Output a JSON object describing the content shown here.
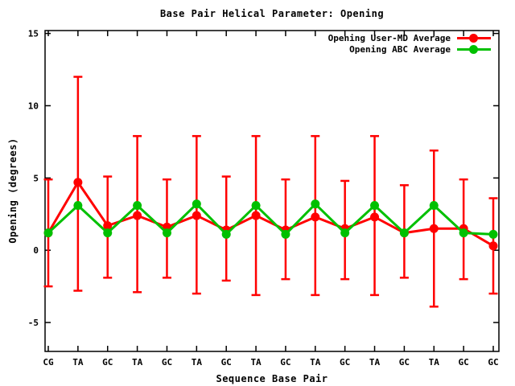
{
  "title": "Base Pair Helical Parameter: Opening",
  "colors": {
    "user_md": "#ff0000",
    "abc": "#00c000",
    "axis": "#000000",
    "background": "#ffffff"
  },
  "chart_data": {
    "type": "line",
    "title": "Base Pair Helical Parameter: Opening",
    "xlabel": "Sequence Base Pair",
    "ylabel": "Opening (degrees)",
    "categories": [
      "CG",
      "TA",
      "GC",
      "TA",
      "GC",
      "TA",
      "GC",
      "TA",
      "GC",
      "TA",
      "GC",
      "TA",
      "GC",
      "TA",
      "GC",
      "GC"
    ],
    "yticks": [
      -5,
      0,
      5,
      10,
      15
    ],
    "ylim": [
      -7,
      15.2
    ],
    "grid": false,
    "legend_position": "top-right-inside",
    "series": [
      {
        "name": "Opening User-MD Average",
        "color": "#ff0000",
        "marker": "circle",
        "values": [
          1.2,
          4.7,
          1.7,
          2.4,
          1.6,
          2.4,
          1.4,
          2.4,
          1.4,
          2.3,
          1.5,
          2.3,
          1.2,
          1.5,
          1.5,
          0.3
        ],
        "error_top": [
          4.9,
          12.0,
          5.1,
          7.9,
          4.9,
          7.9,
          5.1,
          7.9,
          4.9,
          7.9,
          4.8,
          7.9,
          4.5,
          6.9,
          4.9,
          3.6
        ],
        "error_bottom": [
          -2.5,
          -2.8,
          -1.9,
          -2.9,
          -1.9,
          -3.0,
          -2.1,
          -3.1,
          -2.0,
          -3.1,
          -2.0,
          -3.1,
          -1.9,
          -3.9,
          -2.0,
          -3.0
        ]
      },
      {
        "name": "Opening ABC Average",
        "color": "#00c000",
        "marker": "circle",
        "values": [
          1.2,
          3.1,
          1.2,
          3.1,
          1.2,
          3.2,
          1.1,
          3.1,
          1.1,
          3.2,
          1.2,
          3.1,
          1.2,
          3.1,
          1.2,
          1.1
        ]
      }
    ]
  }
}
